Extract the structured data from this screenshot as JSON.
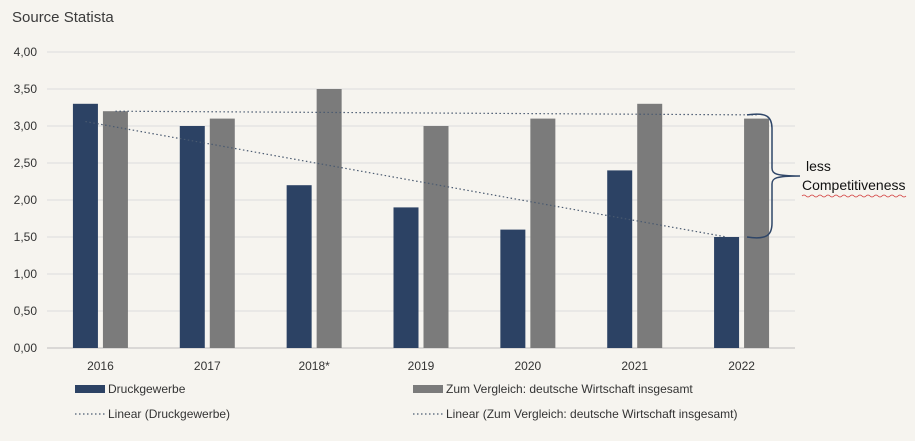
{
  "source_label": "Source Statista",
  "chart_data": {
    "type": "bar",
    "categories": [
      "2016",
      "2017",
      "2018*",
      "2019",
      "2020",
      "2021",
      "2022"
    ],
    "series": [
      {
        "name": "Druckgewerbe",
        "values": [
          3.3,
          3.0,
          2.2,
          1.9,
          1.6,
          2.4,
          1.5
        ],
        "color": "#2c4264"
      },
      {
        "name": "Zum Vergleich: deutsche Wirtschaft insgesamt",
        "values": [
          3.2,
          3.1,
          3.5,
          3.0,
          3.1,
          3.3,
          3.1
        ],
        "color": "#7b7b7b"
      }
    ],
    "trendlines": [
      {
        "name": "Linear (Druckgewerbe)",
        "series": 0,
        "start": 3.06,
        "end": 1.5
      },
      {
        "name": "Linear (Zum Vergleich: deutsche Wirtschaft insgesamt)",
        "series": 1,
        "start": 3.2,
        "end": 3.15
      }
    ],
    "ylim": [
      0,
      4
    ],
    "yticks": [
      "0,00",
      "0,50",
      "1,00",
      "1,50",
      "2,00",
      "2,50",
      "3,00",
      "3,50",
      "4,00"
    ],
    "grid": true,
    "legend": "bottom",
    "annotation": {
      "line1": "less",
      "line2": "Competitiveness"
    }
  }
}
